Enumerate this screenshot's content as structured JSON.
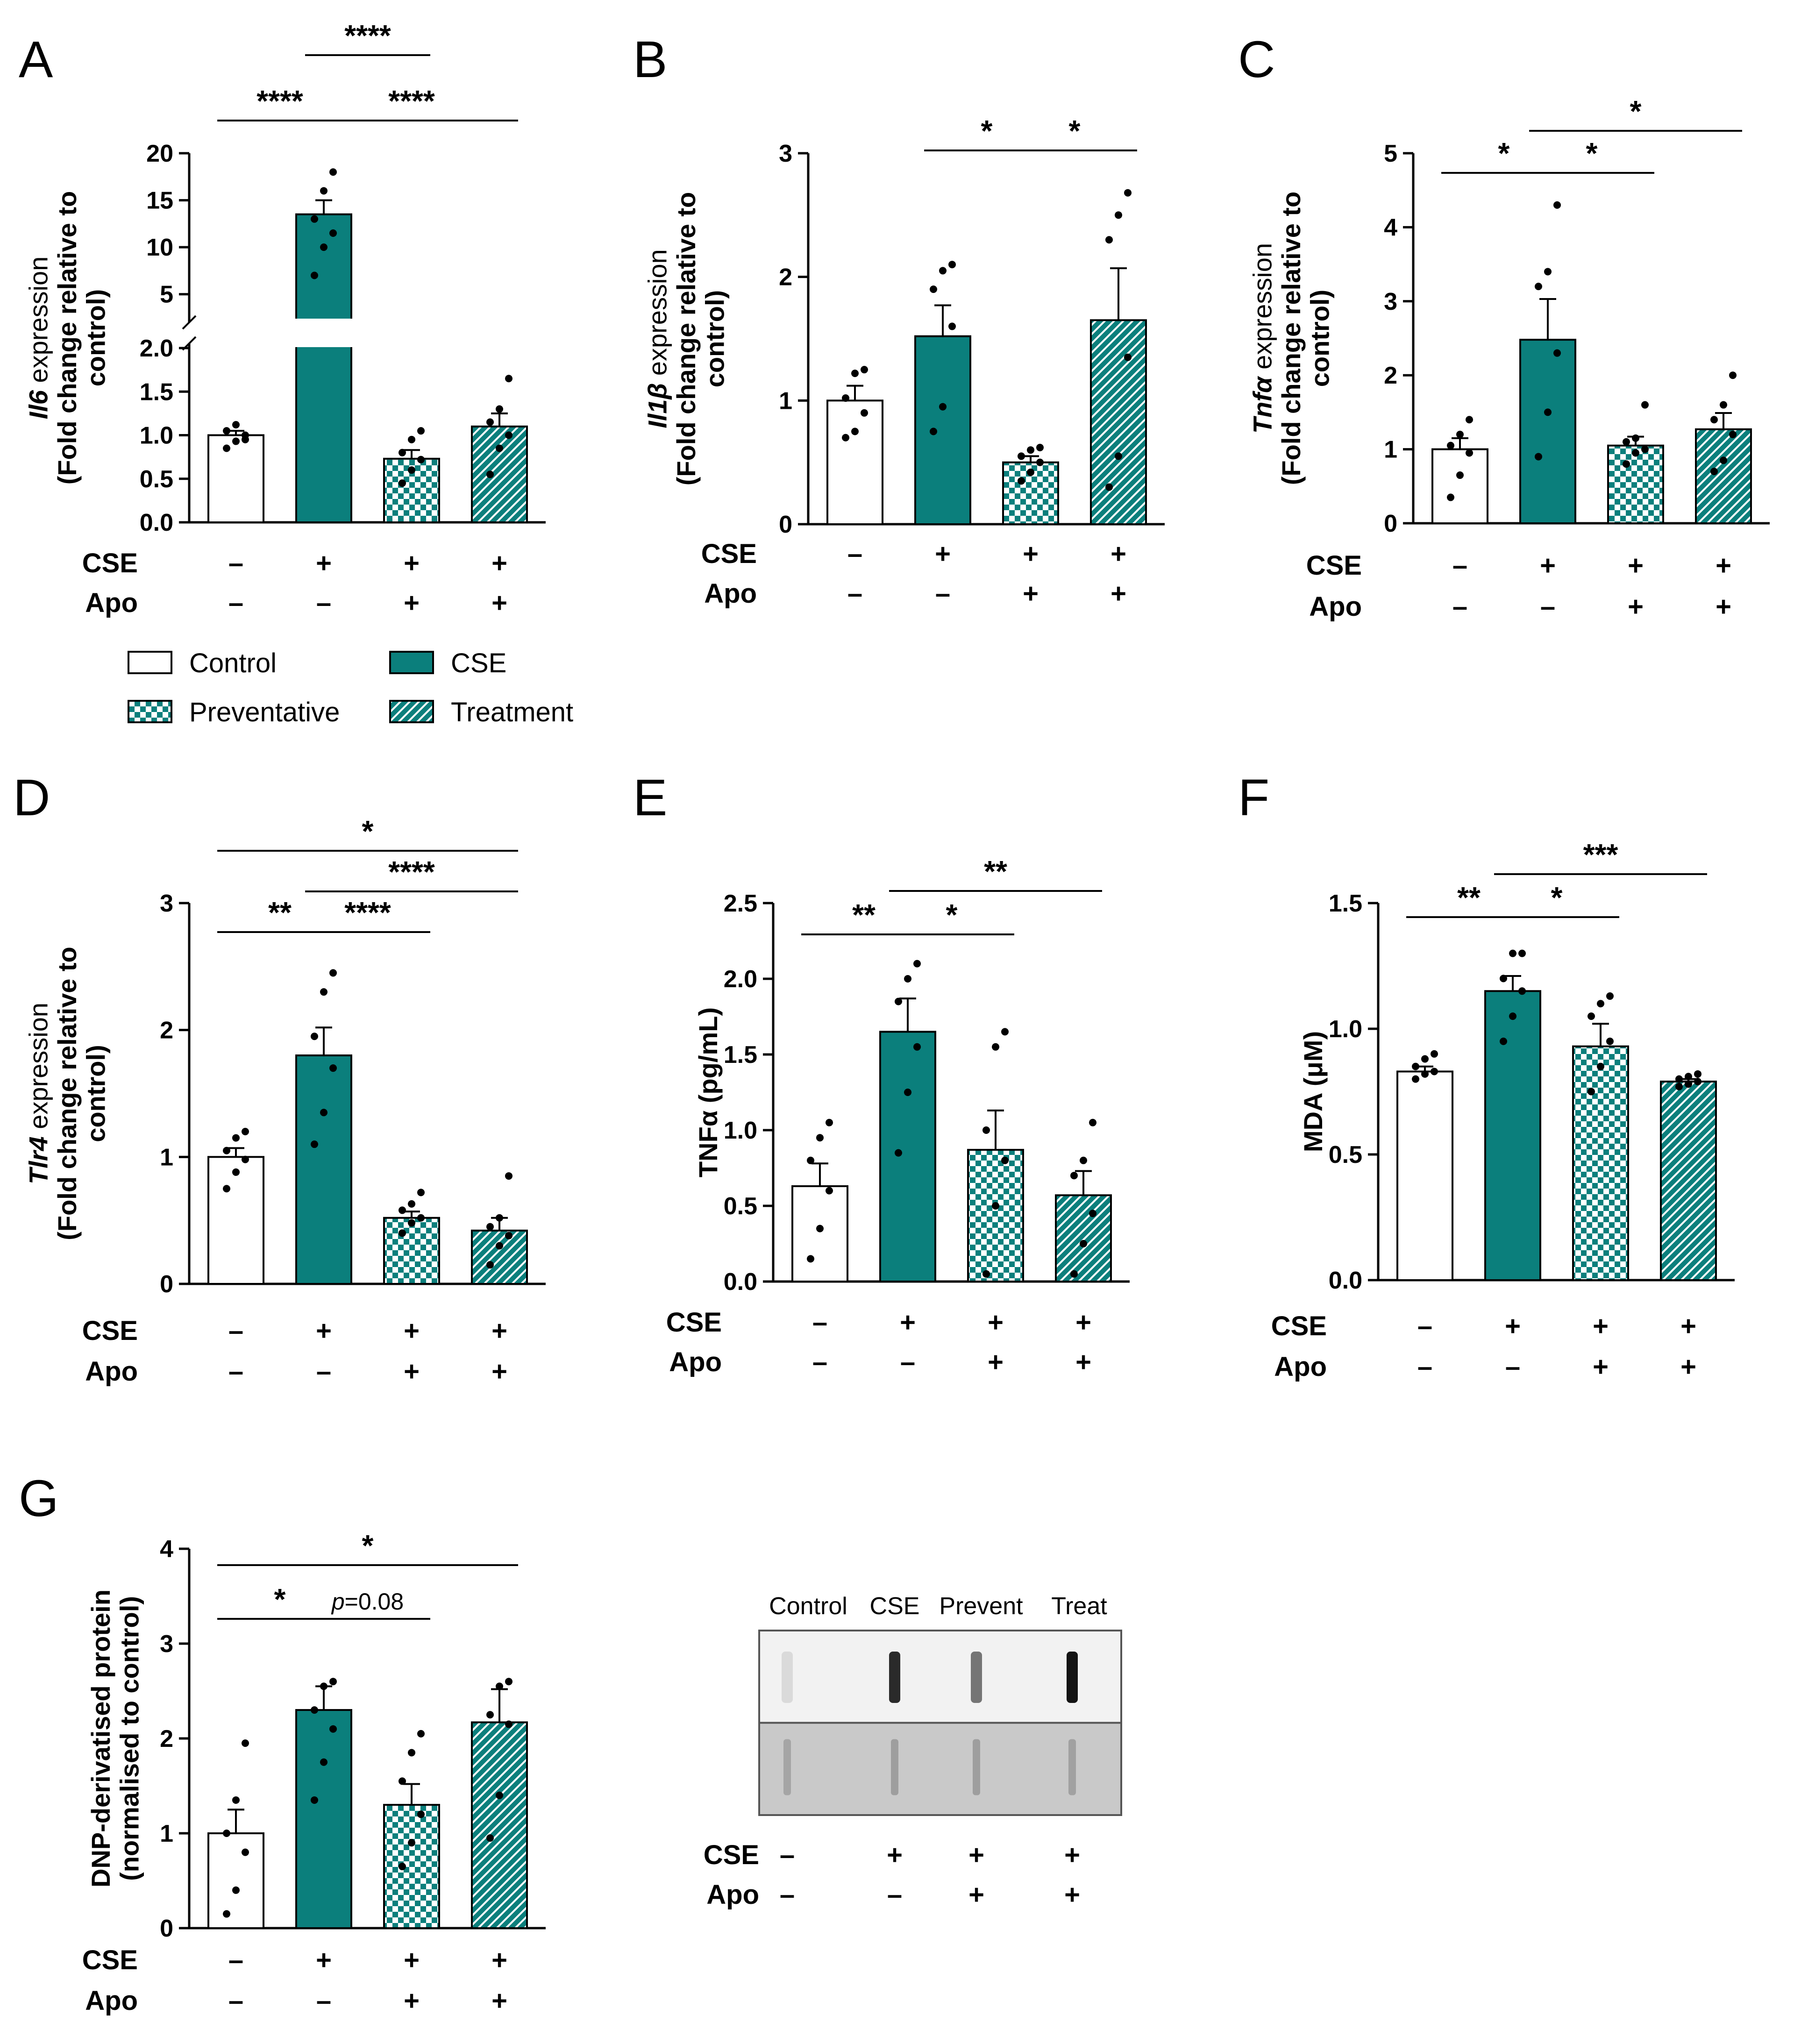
{
  "colors": {
    "teal": "#0b7f7c",
    "white": "#ffffff",
    "black": "#000000"
  },
  "legend": [
    {
      "label": "Control",
      "pattern": "white"
    },
    {
      "label": "CSE",
      "pattern": "solid"
    },
    {
      "label": "Preventative",
      "pattern": "checker"
    },
    {
      "label": "Treatment",
      "pattern": "hatch"
    }
  ],
  "condition_rows": {
    "labels": [
      "CSE",
      "Apo"
    ],
    "CSE": [
      "–",
      "+",
      "+",
      "+"
    ],
    "Apo": [
      "–",
      "–",
      "+",
      "+"
    ]
  },
  "chart_data": [
    {
      "panel": "A",
      "type": "bar",
      "gene": "Il6",
      "ylabel_suffix": " expression",
      "ylabel_line2": "(Fold change relative to",
      "ylabel_line3": "control)",
      "categories": [
        "Control",
        "CSE",
        "Preventative",
        "Treatment"
      ],
      "values": [
        1.0,
        13.5,
        0.73,
        1.1
      ],
      "errors": [
        0.05,
        1.5,
        0.1,
        0.15
      ],
      "points": [
        [
          0.85,
          0.93,
          1.0,
          1.05,
          1.12,
          0.95
        ],
        [
          7,
          10,
          11.5,
          13,
          16,
          18
        ],
        [
          0.45,
          0.6,
          0.72,
          0.8,
          0.95,
          1.05
        ],
        [
          0.55,
          0.85,
          1.0,
          1.15,
          1.3,
          1.65
        ]
      ],
      "broken_axis": true,
      "lower_ylim": [
        0,
        2.0
      ],
      "upper_ylim": [
        2.5,
        20
      ],
      "lower_ticks": [
        "0.0",
        "0.5",
        "1.0",
        "1.5",
        "2.0"
      ],
      "upper_ticks": [
        "5",
        "10",
        "15",
        "20"
      ],
      "sig": [
        {
          "from": 0,
          "to": 1,
          "label": "****",
          "level": 1
        },
        {
          "from": 1,
          "to": 3,
          "label": "****",
          "level": 1
        },
        {
          "from": 1,
          "to": 2,
          "label": "****",
          "level": 2
        }
      ]
    },
    {
      "panel": "B",
      "type": "bar",
      "gene": "Il1β",
      "ylabel_suffix": " expression",
      "ylabel_line2": "(Fold change relative to",
      "ylabel_line3": "control)",
      "categories": [
        "Control",
        "CSE",
        "Preventative",
        "Treatment"
      ],
      "values": [
        1.0,
        1.52,
        0.5,
        1.65
      ],
      "errors": [
        0.12,
        0.25,
        0.05,
        0.42
      ],
      "points": [
        [
          0.7,
          0.75,
          0.9,
          1.02,
          1.22,
          1.25
        ],
        [
          0.75,
          0.95,
          1.6,
          1.9,
          2.05,
          2.1
        ],
        [
          0.35,
          0.42,
          0.5,
          0.55,
          0.6,
          0.62
        ],
        [
          0.3,
          0.55,
          1.35,
          2.3,
          2.5,
          2.68
        ]
      ],
      "ylim": [
        0,
        3
      ],
      "ticks": [
        "0",
        "1",
        "2",
        "3"
      ],
      "sig": [
        {
          "from": 1,
          "to": 2,
          "label": "*",
          "level": 1
        },
        {
          "from": 2,
          "to": 3,
          "label": "*",
          "level": 1
        }
      ]
    },
    {
      "panel": "C",
      "type": "bar",
      "gene": "Tnfα",
      "ylabel_suffix": " expression",
      "ylabel_line2": "(Fold change relative to",
      "ylabel_line3": "control)",
      "categories": [
        "Control",
        "CSE",
        "Preventative",
        "Treatment"
      ],
      "values": [
        1.0,
        2.48,
        1.05,
        1.27
      ],
      "errors": [
        0.15,
        0.55,
        0.12,
        0.22
      ],
      "points": [
        [
          0.35,
          0.65,
          0.95,
          1.05,
          1.2,
          1.4
        ],
        [
          0.9,
          1.5,
          2.3,
          3.2,
          3.4,
          4.3
        ],
        [
          0.8,
          0.95,
          1.0,
          1.1,
          1.15,
          1.6
        ],
        [
          0.7,
          0.85,
          1.2,
          1.4,
          1.6,
          2.0
        ]
      ],
      "ylim": [
        0,
        5
      ],
      "ticks": [
        "0",
        "1",
        "2",
        "3",
        "4",
        "5"
      ],
      "sig": [
        {
          "from": 0,
          "to": 1,
          "label": "*",
          "level": 1
        },
        {
          "from": 1,
          "to": 2,
          "label": "*",
          "level": 1
        },
        {
          "from": 1,
          "to": 3,
          "label": "*",
          "level": 2
        }
      ]
    },
    {
      "panel": "D",
      "type": "bar",
      "gene": "Tlr4",
      "ylabel_suffix": " expression",
      "ylabel_line2": "(Fold change relative to",
      "ylabel_line3": "control)",
      "categories": [
        "Control",
        "CSE",
        "Preventative",
        "Treatment"
      ],
      "values": [
        1.0,
        1.8,
        0.52,
        0.42
      ],
      "errors": [
        0.07,
        0.22,
        0.05,
        0.1
      ],
      "points": [
        [
          0.75,
          0.88,
          0.98,
          1.05,
          1.15,
          1.2
        ],
        [
          1.1,
          1.35,
          1.7,
          1.95,
          2.3,
          2.45
        ],
        [
          0.4,
          0.48,
          0.52,
          0.58,
          0.63,
          0.72
        ],
        [
          0.15,
          0.3,
          0.38,
          0.45,
          0.52,
          0.85
        ]
      ],
      "ylim": [
        0,
        3
      ],
      "ticks": [
        "0",
        "1",
        "2",
        "3"
      ],
      "sig": [
        {
          "from": 0,
          "to": 1,
          "label": "**",
          "level": 1
        },
        {
          "from": 1,
          "to": 2,
          "label": "****",
          "level": 1
        },
        {
          "from": 1,
          "to": 3,
          "label": "****",
          "level": 2
        },
        {
          "from": 0,
          "to": 3,
          "label": "*",
          "level": 3
        }
      ]
    },
    {
      "panel": "E",
      "type": "bar",
      "ylabel": "TNFα (pg/mL)",
      "categories": [
        "Control",
        "CSE",
        "Preventative",
        "Treatment"
      ],
      "values": [
        0.63,
        1.65,
        0.87,
        0.57
      ],
      "errors": [
        0.15,
        0.22,
        0.26,
        0.16
      ],
      "points": [
        [
          0.15,
          0.35,
          0.6,
          0.8,
          0.95,
          1.05
        ],
        [
          0.85,
          1.25,
          1.55,
          1.85,
          2.0,
          2.1
        ],
        [
          0.05,
          0.5,
          0.8,
          1.0,
          1.55,
          1.65
        ],
        [
          0.05,
          0.25,
          0.45,
          0.7,
          0.8,
          1.05
        ]
      ],
      "ylim": [
        0,
        2.5
      ],
      "ticks": [
        "0.0",
        "0.5",
        "1.0",
        "1.5",
        "2.0",
        "2.5"
      ],
      "sig": [
        {
          "from": 0,
          "to": 1,
          "label": "**",
          "level": 1
        },
        {
          "from": 1,
          "to": 2,
          "label": "*",
          "level": 1
        },
        {
          "from": 1,
          "to": 3,
          "label": "**",
          "level": 2
        }
      ]
    },
    {
      "panel": "F",
      "type": "bar",
      "ylabel": "MDA (μM)",
      "categories": [
        "Control",
        "CSE",
        "Preventative",
        "Treatment"
      ],
      "values": [
        0.83,
        1.15,
        0.93,
        0.79
      ],
      "errors": [
        0.02,
        0.06,
        0.09,
        0.01
      ],
      "points": [
        [
          0.8,
          0.82,
          0.83,
          0.85,
          0.88,
          0.9
        ],
        [
          0.95,
          1.05,
          1.15,
          1.2,
          1.3,
          1.3
        ],
        [
          0.75,
          0.85,
          0.95,
          1.05,
          1.1,
          1.13
        ],
        [
          0.77,
          0.78,
          0.79,
          0.8,
          0.81,
          0.82
        ]
      ],
      "ylim": [
        0,
        1.5
      ],
      "ticks": [
        "0.0",
        "0.5",
        "1.0",
        "1.5"
      ],
      "sig": [
        {
          "from": 0,
          "to": 1,
          "label": "**",
          "level": 1
        },
        {
          "from": 1,
          "to": 2,
          "label": "*",
          "level": 1
        },
        {
          "from": 1,
          "to": 3,
          "label": "***",
          "level": 2
        }
      ]
    },
    {
      "panel": "G",
      "type": "bar",
      "ylabel_line1": "DNP-derivatised protein",
      "ylabel_line2": "(normalised to control)",
      "categories": [
        "Control",
        "CSE",
        "Preventative",
        "Treatment"
      ],
      "values": [
        1.0,
        2.3,
        1.3,
        2.17
      ],
      "errors": [
        0.25,
        0.25,
        0.22,
        0.35
      ],
      "points": [
        [
          0.15,
          0.4,
          0.8,
          1.0,
          1.35,
          1.95
        ],
        [
          1.35,
          1.75,
          2.1,
          2.3,
          2.55,
          2.6
        ],
        [
          0.65,
          0.9,
          1.2,
          1.55,
          1.85,
          2.05
        ],
        [
          0.95,
          1.4,
          2.15,
          2.25,
          2.55,
          2.6
        ]
      ],
      "ylim": [
        0,
        4
      ],
      "ticks": [
        "0",
        "1",
        "2",
        "3",
        "4"
      ],
      "sig": [
        {
          "from": 0,
          "to": 1,
          "label": "*",
          "level": 1
        },
        {
          "from": 1,
          "to": 2,
          "label": "p=0.08",
          "italic_p": true,
          "level": 1
        },
        {
          "from": 0,
          "to": 3,
          "label": "*",
          "level": 2
        }
      ]
    }
  ],
  "blot": {
    "lane_labels": [
      "Control",
      "CSE",
      "Prevent",
      "Treat"
    ],
    "band_intensity_top": [
      0.08,
      0.9,
      0.55,
      1.0
    ],
    "band_intensity_bottom": [
      0.25,
      0.3,
      0.3,
      0.28
    ]
  }
}
